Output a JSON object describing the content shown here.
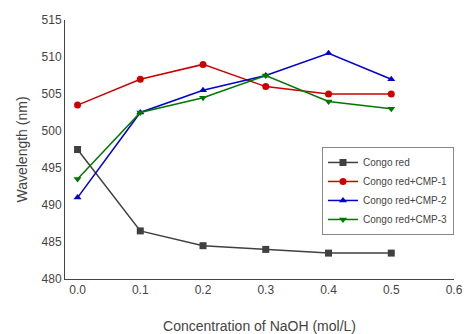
{
  "chart_data": {
    "type": "line",
    "x_label": "Concentration of NaOH (mol/L)",
    "y_label": "Wavelength (nm)",
    "x": [
      0.0,
      0.1,
      0.2,
      0.3,
      0.4,
      0.5
    ],
    "series": [
      {
        "name": "Congo red",
        "color": "#404040",
        "marker": "square",
        "values": [
          497.5,
          486.5,
          484.5,
          484.0,
          483.5,
          483.5
        ]
      },
      {
        "name": "Congo red+CMP-1",
        "color": "#cc0000",
        "marker": "circle",
        "values": [
          503.5,
          507.0,
          509.0,
          506.0,
          505.0,
          505.0
        ]
      },
      {
        "name": "Congo red+CMP-2",
        "color": "#0000cc",
        "marker": "triangle-up",
        "values": [
          491.0,
          502.5,
          505.5,
          507.5,
          510.5,
          507.0
        ]
      },
      {
        "name": "Congo red+CMP-3",
        "color": "#007700",
        "marker": "triangle-down",
        "values": [
          493.5,
          502.5,
          504.5,
          507.5,
          504.0,
          503.0
        ]
      }
    ],
    "xlim": [
      -0.02,
      0.6
    ],
    "xticks": [
      {
        "value": 0,
        "label": "0.0"
      },
      0.1,
      0.2,
      0.3,
      0.4,
      0.5,
      0.6
    ],
    "ylim": [
      480,
      515
    ],
    "yticks": [
      480,
      485,
      490,
      495,
      500,
      505,
      510,
      515
    ],
    "grid": false,
    "legend": "lower right"
  }
}
